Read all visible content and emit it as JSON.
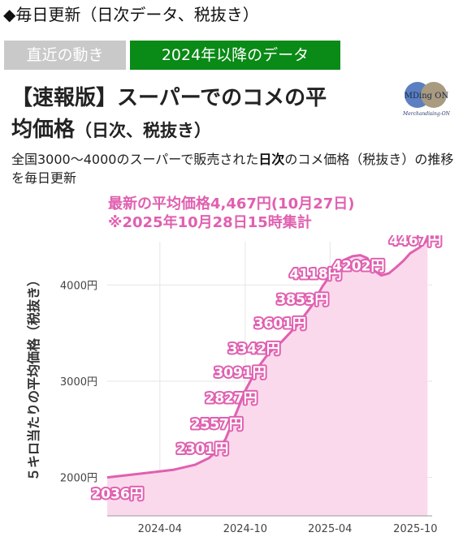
{
  "header": {
    "section_title": "◆毎日更新（日次データ、税抜き）",
    "tabs": [
      {
        "label": "直近の動き",
        "active": false
      },
      {
        "label": "2024年以降のデータ",
        "active": true
      }
    ],
    "title_line1": "【速報版】スーパーでのコメの平",
    "title_line2_main": "均価格",
    "title_line2_paren": "（日次、税抜き）",
    "logo": {
      "top": "MDing ON",
      "bottom": "Merchandising-ON"
    },
    "desc_part1": "全国3000〜4000のスーパーで販売された",
    "desc_bold": "日次",
    "desc_part2": "のコメ価格（税抜き）の推移を毎日更新"
  },
  "colors": {
    "accent": "#e060b0",
    "area": "#fbd9ec",
    "tab_active": "#0a8a16",
    "tab_inactive": "#c9c9c9"
  },
  "chart_data": {
    "type": "area",
    "annotation_line1": "最新の平均価格4,467円(10月27日)",
    "annotation_line2": "※2025年10月28日15時集計",
    "ylabel": "５キロ当たりの平均価格（税抜き）",
    "xlabel": "",
    "ylim": [
      1600,
      4450
    ],
    "xlim": [
      "2023-12-10",
      "2025-11-06"
    ],
    "y_ticks": [
      {
        "value": 2000,
        "label": "2000円"
      },
      {
        "value": 3000,
        "label": "3000円"
      },
      {
        "value": 4000,
        "label": "4000円"
      }
    ],
    "x_ticks": [
      {
        "value": "2024-04-01",
        "label": "2024-04"
      },
      {
        "value": "2024-10-01",
        "label": "2024-10"
      },
      {
        "value": "2025-04-01",
        "label": "2025-04"
      },
      {
        "value": "2025-10-01",
        "label": "2025-10"
      }
    ],
    "grid": true,
    "series": [
      {
        "points": [
          [
            "2023-12-10",
            2000
          ],
          [
            "2024-01-15",
            2020
          ],
          [
            "2024-03-01",
            2045
          ],
          [
            "2024-05-01",
            2080
          ],
          [
            "2024-06-15",
            2130
          ],
          [
            "2024-07-15",
            2200
          ],
          [
            "2024-08-01",
            2270
          ],
          [
            "2024-08-20",
            2400
          ],
          [
            "2024-09-10",
            2650
          ],
          [
            "2024-10-01",
            2900
          ],
          [
            "2024-10-25",
            3120
          ],
          [
            "2024-11-20",
            3290
          ],
          [
            "2024-12-20",
            3420
          ],
          [
            "2025-01-20",
            3580
          ],
          [
            "2025-02-20",
            3780
          ],
          [
            "2025-03-15",
            3980
          ],
          [
            "2025-04-10",
            4160
          ],
          [
            "2025-05-01",
            4260
          ],
          [
            "2025-05-20",
            4300
          ],
          [
            "2025-06-05",
            4310
          ],
          [
            "2025-06-20",
            4280
          ],
          [
            "2025-07-05",
            4150
          ],
          [
            "2025-07-20",
            4100
          ],
          [
            "2025-08-05",
            4120
          ],
          [
            "2025-08-20",
            4180
          ],
          [
            "2025-09-05",
            4250
          ],
          [
            "2025-09-20",
            4330
          ],
          [
            "2025-10-10",
            4390
          ],
          [
            "2025-10-27",
            4467
          ]
        ]
      }
    ],
    "data_labels": [
      {
        "date": "2024-01-01",
        "value": 1830,
        "text": "2036円"
      },
      {
        "date": "2024-07-01",
        "value": 2301,
        "text": "2301円"
      },
      {
        "date": "2024-08-01",
        "value": 2557,
        "text": "2557円"
      },
      {
        "date": "2024-09-01",
        "value": 2827,
        "text": "2827円"
      },
      {
        "date": "2024-09-20",
        "value": 3091,
        "text": "3091円"
      },
      {
        "date": "2024-10-20",
        "value": 3342,
        "text": "3342円"
      },
      {
        "date": "2024-12-15",
        "value": 3601,
        "text": "3601円"
      },
      {
        "date": "2025-02-01",
        "value": 3853,
        "text": "3853円"
      },
      {
        "date": "2025-03-01",
        "value": 4118,
        "text": "4118円"
      },
      {
        "date": "2025-06-01",
        "value": 4202,
        "text": "4202円"
      },
      {
        "date": "2025-10-01",
        "value": 4467,
        "text": "4467円"
      }
    ]
  }
}
